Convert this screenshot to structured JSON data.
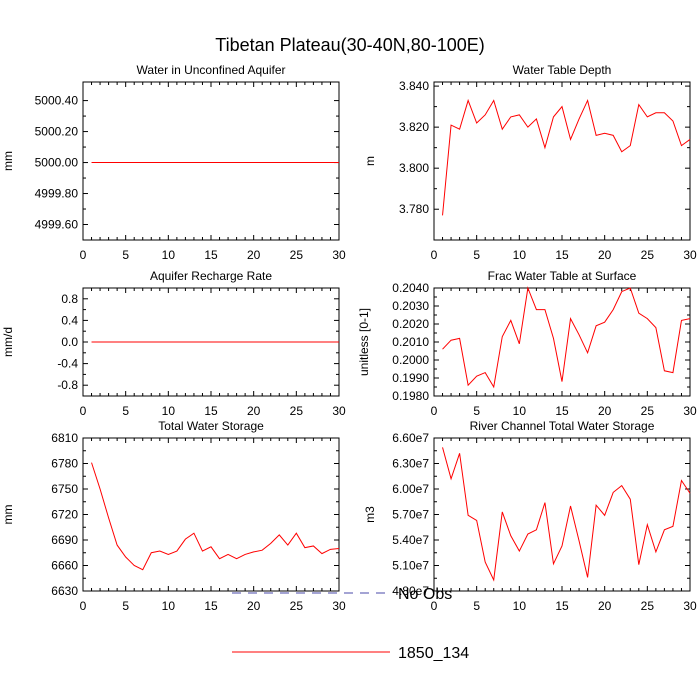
{
  "title": "Tibetan Plateau(30-40N,80-100E)",
  "legend": {
    "entries": [
      {
        "label": "No Obs",
        "style": "dashed",
        "color": "#4a4aa8"
      },
      {
        "label": "1850_134",
        "style": "solid",
        "color": "#ff0000"
      }
    ]
  },
  "chart_data": [
    {
      "type": "line",
      "title": "Water in Unconfined Aquifer",
      "ylabel": "mm",
      "xlim": [
        0,
        30
      ],
      "ylim": [
        4999.5,
        5000.52
      ],
      "xticks": [
        0,
        5,
        10,
        15,
        20,
        25,
        30
      ],
      "xtick_labels": [
        "0",
        "5",
        "10",
        "15",
        "20",
        "25",
        "30"
      ],
      "yticks": [
        4999.6,
        4999.8,
        5000.0,
        5000.2,
        5000.4
      ],
      "ytick_labels": [
        "4999.60",
        "4999.80",
        "5000.00",
        "5000.20",
        "5000.40"
      ],
      "series": [
        {
          "name": "1850_134",
          "color": "#ff0000",
          "x": [
            1,
            2,
            3,
            4,
            5,
            6,
            7,
            8,
            9,
            10,
            11,
            12,
            13,
            14,
            15,
            16,
            17,
            18,
            19,
            20,
            21,
            22,
            23,
            24,
            25,
            26,
            27,
            28,
            29,
            30
          ],
          "values": [
            5000,
            5000,
            5000,
            5000,
            5000,
            5000,
            5000,
            5000,
            5000,
            5000,
            5000,
            5000,
            5000,
            5000,
            5000,
            5000,
            5000,
            5000,
            5000,
            5000,
            5000,
            5000,
            5000,
            5000,
            5000,
            5000,
            5000,
            5000,
            5000,
            5000
          ]
        }
      ]
    },
    {
      "type": "line",
      "title": "Water Table Depth",
      "ylabel": "m",
      "xlim": [
        0,
        30
      ],
      "ylim": [
        3.765,
        3.842
      ],
      "xticks": [
        0,
        5,
        10,
        15,
        20,
        25,
        30
      ],
      "xtick_labels": [
        "0",
        "5",
        "10",
        "15",
        "20",
        "25",
        "30"
      ],
      "yticks": [
        3.78,
        3.8,
        3.82,
        3.84
      ],
      "ytick_labels": [
        "3.780",
        "3.800",
        "3.820",
        "3.840"
      ],
      "series": [
        {
          "name": "1850_134",
          "color": "#ff0000",
          "x": [
            1,
            2,
            3,
            4,
            5,
            6,
            7,
            8,
            9,
            10,
            11,
            12,
            13,
            14,
            15,
            16,
            17,
            18,
            19,
            20,
            21,
            22,
            23,
            24,
            25,
            26,
            27,
            28,
            29,
            30
          ],
          "values": [
            3.777,
            3.821,
            3.819,
            3.833,
            3.822,
            3.826,
            3.833,
            3.819,
            3.825,
            3.826,
            3.82,
            3.824,
            3.81,
            3.825,
            3.83,
            3.814,
            3.824,
            3.833,
            3.816,
            3.817,
            3.816,
            3.808,
            3.811,
            3.831,
            3.825,
            3.827,
            3.827,
            3.823,
            3.811,
            3.814
          ]
        }
      ]
    },
    {
      "type": "line",
      "title": "Aquifer Recharge Rate",
      "ylabel": "mm/d",
      "xlim": [
        0,
        30
      ],
      "ylim": [
        -1.0,
        1.0
      ],
      "xticks": [
        0,
        5,
        10,
        15,
        20,
        25,
        30
      ],
      "xtick_labels": [
        "0",
        "5",
        "10",
        "15",
        "20",
        "25",
        "30"
      ],
      "yticks": [
        -0.8,
        -0.4,
        0.0,
        0.4,
        0.8
      ],
      "ytick_labels": [
        "-0.8",
        "-0.4",
        "0.0",
        "0.4",
        "0.8"
      ],
      "series": [
        {
          "name": "1850_134",
          "color": "#ff0000",
          "x": [
            1,
            2,
            3,
            4,
            5,
            6,
            7,
            8,
            9,
            10,
            11,
            12,
            13,
            14,
            15,
            16,
            17,
            18,
            19,
            20,
            21,
            22,
            23,
            24,
            25,
            26,
            27,
            28,
            29,
            30
          ],
          "values": [
            0,
            0,
            0,
            0,
            0,
            0,
            0,
            0,
            0,
            0,
            0,
            0,
            0,
            0,
            0,
            0,
            0,
            0,
            0,
            0,
            0,
            0,
            0,
            0,
            0,
            0,
            0,
            0,
            0,
            0
          ]
        }
      ]
    },
    {
      "type": "line",
      "title": "Frac Water Table at Surface",
      "ylabel": "unitless [0-1]",
      "xlim": [
        0,
        30
      ],
      "ylim": [
        0.198,
        0.204
      ],
      "xticks": [
        0,
        5,
        10,
        15,
        20,
        25,
        30
      ],
      "xtick_labels": [
        "0",
        "5",
        "10",
        "15",
        "20",
        "25",
        "30"
      ],
      "yticks": [
        0.198,
        0.199,
        0.2,
        0.201,
        0.202,
        0.203,
        0.204
      ],
      "ytick_labels": [
        "0.1980",
        "0.1990",
        "0.2000",
        "0.2010",
        "0.2020",
        "0.2030",
        "0.2040"
      ],
      "series": [
        {
          "name": "1850_134",
          "color": "#ff0000",
          "x": [
            1,
            2,
            3,
            4,
            5,
            6,
            7,
            8,
            9,
            10,
            11,
            12,
            13,
            14,
            15,
            16,
            17,
            18,
            19,
            20,
            21,
            22,
            23,
            24,
            25,
            26,
            27,
            28,
            29,
            30
          ],
          "values": [
            0.2006,
            0.2011,
            0.2012,
            0.1986,
            0.1991,
            0.1993,
            0.1985,
            0.2013,
            0.2022,
            0.2009,
            0.204,
            0.2028,
            0.2028,
            0.2012,
            0.1988,
            0.2023,
            0.2014,
            0.2004,
            0.2019,
            0.2021,
            0.2028,
            0.2038,
            0.204,
            0.2026,
            0.2023,
            0.2018,
            0.1994,
            0.1993,
            0.2022,
            0.2023
          ]
        }
      ]
    },
    {
      "type": "line",
      "title": "Total Water Storage",
      "ylabel": "mm",
      "xlim": [
        0,
        30
      ],
      "ylim": [
        6630,
        6810
      ],
      "xticks": [
        0,
        5,
        10,
        15,
        20,
        25,
        30
      ],
      "xtick_labels": [
        "0",
        "5",
        "10",
        "15",
        "20",
        "25",
        "30"
      ],
      "yticks": [
        6630,
        6660,
        6690,
        6720,
        6750,
        6780,
        6810
      ],
      "ytick_labels": [
        "6630",
        "6660",
        "6690",
        "6720",
        "6750",
        "6780",
        "6810"
      ],
      "series": [
        {
          "name": "1850_134",
          "color": "#ff0000",
          "x": [
            1,
            2,
            3,
            4,
            5,
            6,
            7,
            8,
            9,
            10,
            11,
            12,
            13,
            14,
            15,
            16,
            17,
            18,
            19,
            20,
            21,
            22,
            23,
            24,
            25,
            26,
            27,
            28,
            29,
            30
          ],
          "values": [
            6781,
            6750,
            6716,
            6684,
            6670,
            6660,
            6655,
            6675,
            6677,
            6673,
            6677,
            6691,
            6698,
            6677,
            6682,
            6668,
            6673,
            6668,
            6673,
            6676,
            6678,
            6686,
            6696,
            6684,
            6698,
            6681,
            6683,
            6674,
            6679,
            6680
          ]
        }
      ]
    },
    {
      "type": "line",
      "title": "River Channel Total Water Storage",
      "ylabel": "m3",
      "xlim": [
        0,
        30
      ],
      "ylim": [
        48000000,
        66000000
      ],
      "xticks": [
        0,
        5,
        10,
        15,
        20,
        25,
        30
      ],
      "xtick_labels": [
        "0",
        "5",
        "10",
        "15",
        "20",
        "25",
        "30"
      ],
      "yticks": [
        48000000,
        51000000,
        54000000,
        57000000,
        60000000,
        63000000,
        66000000
      ],
      "ytick_labels": [
        "4.80e7",
        "5.10e7",
        "5.40e7",
        "5.70e7",
        "6.00e7",
        "6.30e7",
        "6.60e7"
      ],
      "series": [
        {
          "name": "1850_134",
          "color": "#ff0000",
          "x": [
            1,
            2,
            3,
            4,
            5,
            6,
            7,
            8,
            9,
            10,
            11,
            12,
            13,
            14,
            15,
            16,
            17,
            18,
            19,
            20,
            21,
            22,
            23,
            24,
            25,
            26,
            27,
            28,
            29,
            30
          ],
          "values": [
            64900000,
            61200000,
            64200000,
            56900000,
            56300000,
            51400000,
            49300000,
            57300000,
            54500000,
            52700000,
            54700000,
            55200000,
            58400000,
            51200000,
            53300000,
            58000000,
            53900000,
            49600000,
            58100000,
            56900000,
            59600000,
            60400000,
            58800000,
            51100000,
            55800000,
            52600000,
            55200000,
            55600000,
            61000000,
            59500000
          ]
        }
      ]
    }
  ]
}
